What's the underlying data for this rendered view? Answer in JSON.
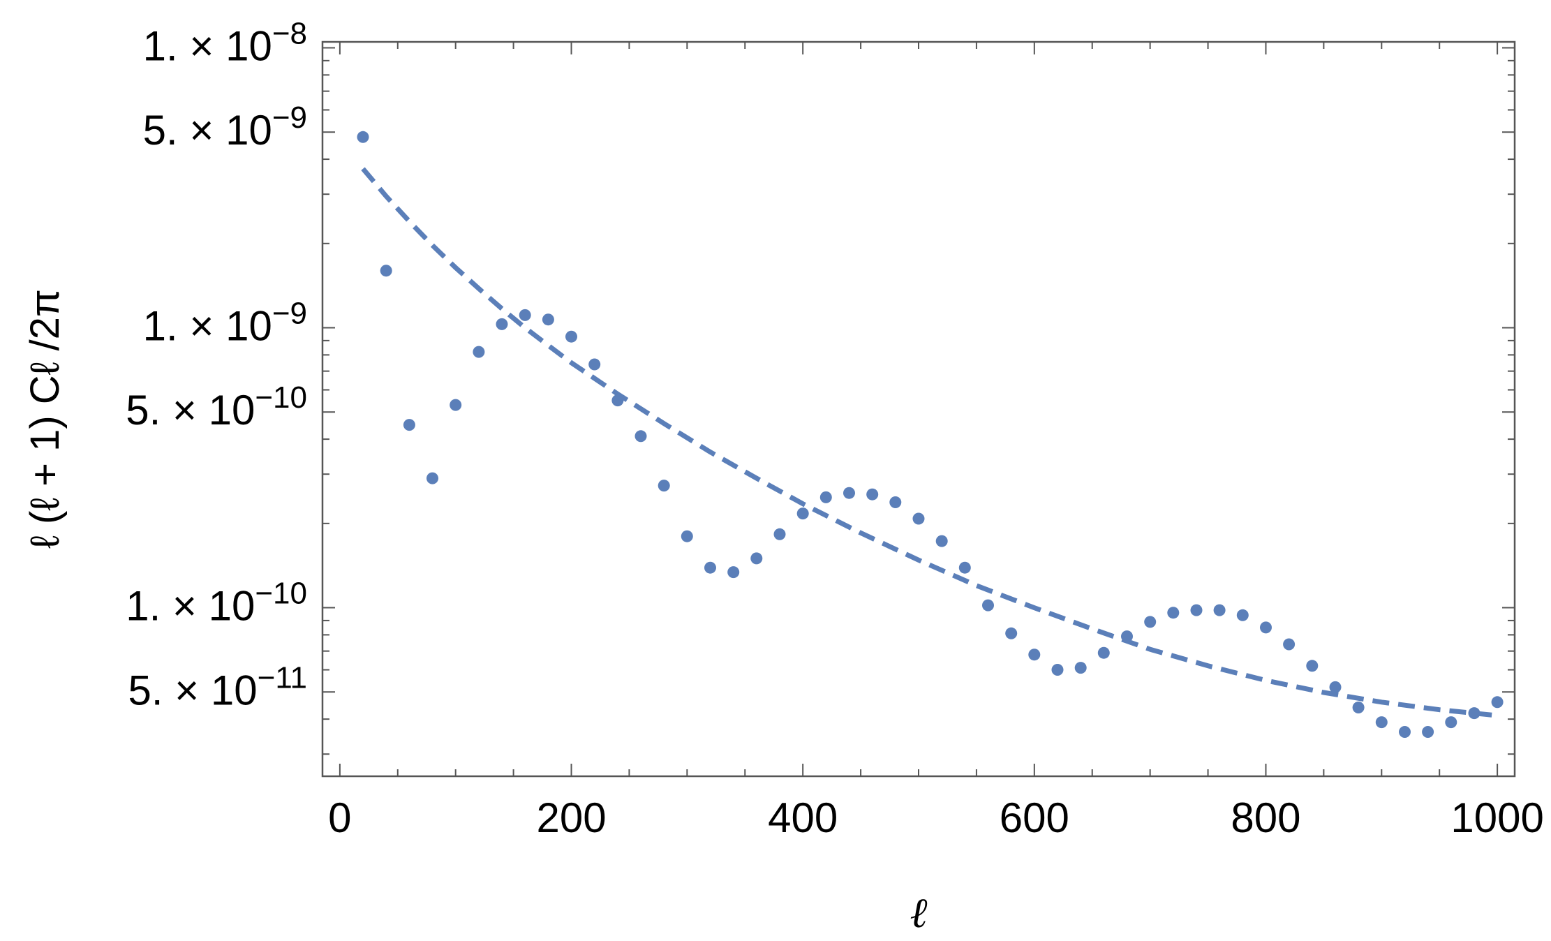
{
  "chart_data": {
    "type": "scatter",
    "xlabel": "ℓ",
    "ylabel": "ℓ (ℓ + 1) Cℓ /2π",
    "xlim": [
      -15,
      1015
    ],
    "ylim": [
      2.5e-11,
      1.05e-08
    ],
    "yscale": "log",
    "grid": false,
    "color": "#5b7fb9",
    "x_ticks": [
      0,
      200,
      400,
      600,
      800,
      1000
    ],
    "x_tick_labels": [
      "0",
      "200",
      "400",
      "600",
      "800",
      "1000"
    ],
    "y_major_ticks": [
      {
        "value": 1e-08,
        "mantissa": "1.",
        "exponent": "−8"
      },
      {
        "value": 5e-09,
        "mantissa": "5.",
        "exponent": "−9"
      },
      {
        "value": 1e-09,
        "mantissa": "1.",
        "exponent": "−9"
      },
      {
        "value": 5e-10,
        "mantissa": "5.",
        "exponent": "−10"
      },
      {
        "value": 1e-10,
        "mantissa": "1.",
        "exponent": "−10"
      },
      {
        "value": 5e-11,
        "mantissa": "5.",
        "exponent": "−11"
      }
    ],
    "series": [
      {
        "style": "points",
        "x": [
          20,
          40,
          60,
          80,
          100,
          120,
          140,
          160,
          180,
          200,
          220,
          240,
          260,
          280,
          300,
          320,
          340,
          360,
          380,
          400,
          420,
          440,
          460,
          480,
          500,
          520,
          540,
          560,
          580,
          600,
          620,
          640,
          660,
          680,
          700,
          720,
          740,
          760,
          780,
          800,
          820,
          840,
          860,
          880,
          900,
          920,
          940,
          960,
          980,
          1000
        ],
        "y": [
          4.8e-09,
          1.6e-09,
          4.5e-10,
          2.9e-10,
          5.3e-10,
          8.2e-10,
          1.03e-09,
          1.11e-09,
          1.07e-09,
          9.3e-10,
          7.4e-10,
          5.5e-10,
          4.1e-10,
          2.73e-10,
          1.8e-10,
          1.39e-10,
          1.34e-10,
          1.5e-10,
          1.83e-10,
          2.17e-10,
          2.48e-10,
          2.57e-10,
          2.54e-10,
          2.38e-10,
          2.08e-10,
          1.73e-10,
          1.39e-10,
          1.02e-10,
          8.1e-11,
          6.8e-11,
          6e-11,
          6.1e-11,
          6.9e-11,
          7.9e-11,
          8.9e-11,
          9.6e-11,
          9.8e-11,
          9.8e-11,
          9.4e-11,
          8.5e-11,
          7.4e-11,
          6.2e-11,
          5.2e-11,
          4.4e-11,
          3.9e-11,
          3.6e-11,
          3.6e-11,
          3.9e-11,
          4.2e-11,
          4.6e-11
        ]
      },
      {
        "style": "dashed",
        "x": [
          20,
          40,
          60,
          80,
          100,
          120,
          140,
          160,
          180,
          200,
          240,
          280,
          320,
          360,
          400,
          450,
          500,
          550,
          600,
          650,
          700,
          750,
          800,
          850,
          900,
          950,
          1000
        ],
        "y": [
          3.7e-09,
          2.95e-09,
          2.4e-09,
          1.97e-09,
          1.64e-09,
          1.38e-09,
          1.17e-09,
          1e-09,
          8.65e-10,
          7.5e-10,
          5.8e-10,
          4.55e-10,
          3.6e-10,
          2.9e-10,
          2.35e-10,
          1.85e-10,
          1.48e-10,
          1.2e-10,
          1e-10,
          8.4e-11,
          7.1e-11,
          6.2e-11,
          5.5e-11,
          4.98e-11,
          4.6e-11,
          4.32e-11,
          4.12e-11
        ]
      }
    ]
  }
}
